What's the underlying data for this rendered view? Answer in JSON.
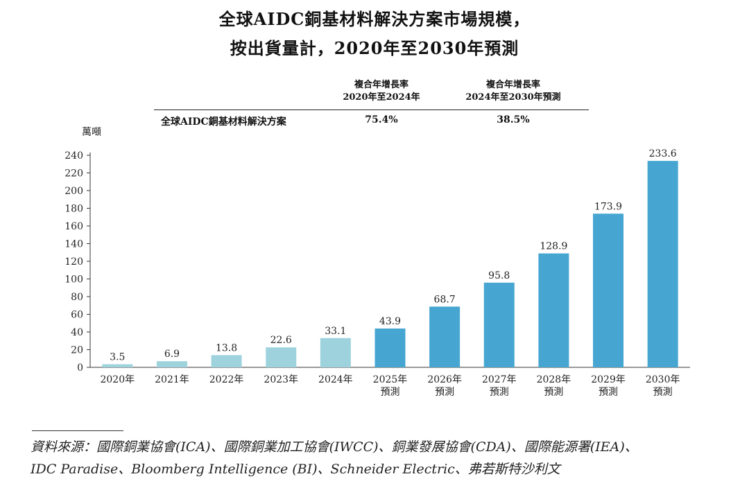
{
  "title": {
    "line1": "全球AIDC銅基材料解決方案市場規模，",
    "line2": "按出貨量計，2020年至2030年預測"
  },
  "cagr_table": {
    "col1_header_line1": "複合年增長率",
    "col1_header_line2": "2020年至2024年",
    "col2_header_line1": "複合年增長率",
    "col2_header_line2": "2024年至2030年預測",
    "row_label": "全球AIDC銅基材料解決方案",
    "col1_value": "75.4%",
    "col2_value": "38.5%"
  },
  "source": {
    "line1": "資料來源：國際銅業協會(ICA)、國際銅業加工協會(IWCC)、銅業發展協會(CDA)、國際能源署(IEA)、",
    "line2": "IDC Paradise、Bloomberg Intelligence (BI)、Schneider Electric、弗若斯特沙利文"
  },
  "chart_data": {
    "type": "bar",
    "title": "全球AIDC銅基材料解決方案市場規模，按出貨量計，2020年至2030年預測",
    "ylabel": "萬噸",
    "xlabel": "",
    "ylim": [
      0,
      240
    ],
    "yticks": [
      0,
      20,
      40,
      60,
      80,
      100,
      120,
      140,
      160,
      180,
      200,
      220,
      240
    ],
    "categories": [
      "2020年",
      "2021年",
      "2022年",
      "2023年",
      "2024年",
      "2025年",
      "2026年",
      "2027年",
      "2028年",
      "2029年",
      "2030年"
    ],
    "forecast_label": "預測",
    "forecast_flags": [
      false,
      false,
      false,
      false,
      false,
      true,
      true,
      true,
      true,
      true,
      true
    ],
    "values": [
      3.5,
      6.9,
      13.8,
      22.6,
      33.1,
      43.9,
      68.7,
      95.8,
      128.9,
      173.9,
      233.6
    ],
    "value_labels": [
      "3.5",
      "6.9",
      "13.8",
      "22.6",
      "33.1",
      "43.9",
      "68.7",
      "95.8",
      "128.9",
      "173.9",
      "233.6"
    ],
    "colors": {
      "historical": "#9ed3de",
      "forecast": "#46a6d1",
      "axis": "#333333"
    }
  }
}
